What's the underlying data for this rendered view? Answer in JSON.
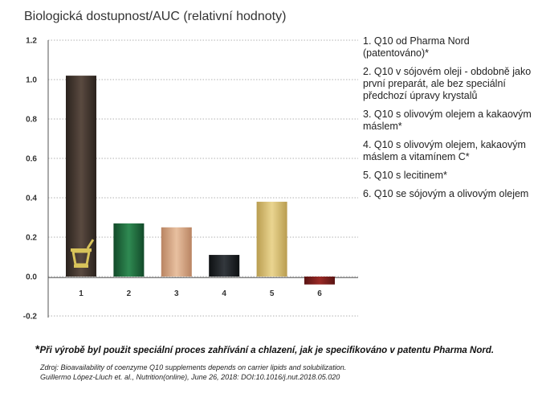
{
  "chart_data": {
    "type": "bar",
    "title": "Biologická dostupnost/AUC (relativní hodnoty)",
    "categories": [
      "1",
      "2",
      "3",
      "4",
      "5",
      "6"
    ],
    "values": [
      1.02,
      0.27,
      0.25,
      0.11,
      0.38,
      -0.04
    ],
    "ylim": [
      -0.2,
      1.2
    ],
    "yticks": [
      "-0.2",
      "0.0",
      "0.2",
      "0.4",
      "0.6",
      "0.8",
      "1.0",
      "1.2"
    ],
    "grid": "dotted horizontal",
    "colors": [
      "#3b3029",
      "#1f6b3e",
      "#d4a27e",
      "#1c1f22",
      "#d7bd70",
      "#7a1e1c"
    ],
    "legend": [
      "1. Q10 od Pharma Nord (patentováno)*",
      "2. Q10 v sójovém oleji - obdobně jako první preparát, ale bez speciální předchozí úpravy krystalů",
      "3. Q10 s olivovým olejem a kakaovým máslem*",
      "4. Q10 s olivovým olejem, kakaovým máslem a vitamínem C*",
      "5. Q10 s lecitinem*",
      "6. Q10 se sójovým a olivovým olejem"
    ]
  },
  "footnote": "Při výrobě byl použit speciální proces zahřívání a chlazení,  jak je specifikováno v patentu Pharma Nord.",
  "footnote_star": "*",
  "source_line1": "Zdroj: Bioavailability of coenzyme Q10 supplements depends on carrier lipids and solubilization.",
  "source_line2": "Guillermo López-Lluch et. al., Nutrition(online), June 26, 2018: DOI:10.1016/j.nut.2018.05.020",
  "logo_icon": "mortar-icon"
}
